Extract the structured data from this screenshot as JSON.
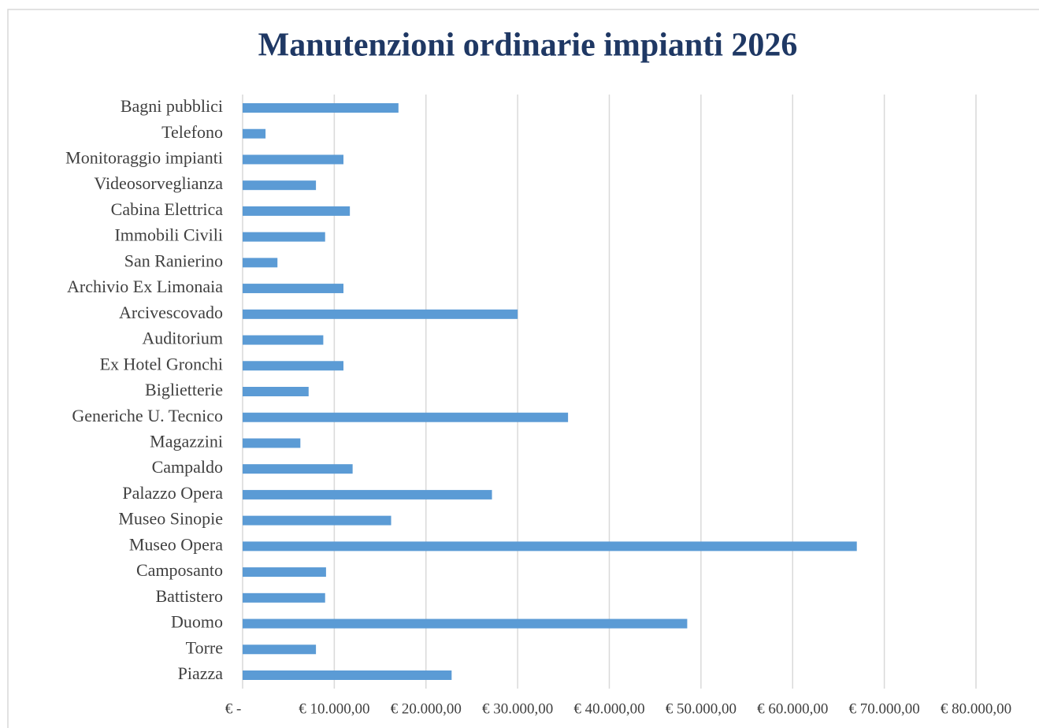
{
  "chart_data": {
    "type": "barh",
    "title": "Manutenzioni ordinarie impianti 2026",
    "categories": [
      "Bagni pubblici",
      "Telefono",
      "Monitoraggio impianti",
      "Videosorveglianza",
      "Cabina Elettrica",
      "Immobili Civili",
      "San Ranierino",
      "Archivio Ex Limonaia",
      "Arcivescovado",
      "Auditorium",
      "Ex Hotel Gronchi",
      "Biglietterie",
      "Generiche U. Tecnico",
      "Magazzini",
      "Campaldo",
      "Palazzo Opera",
      "Museo Sinopie",
      "Museo Opera",
      "Camposanto",
      "Battistero",
      "Duomo",
      "Torre",
      "Piazza"
    ],
    "values": [
      17000,
      2500,
      11000,
      8000,
      11700,
      9000,
      3800,
      11000,
      30000,
      8800,
      11000,
      7200,
      35500,
      6300,
      12000,
      27200,
      16200,
      67000,
      9100,
      9000,
      48500,
      8000,
      22800
    ],
    "color": "#5b9bd5",
    "xlim": [
      0,
      80000
    ],
    "xticks": [
      {
        "value": 0,
        "label": "€ -"
      },
      {
        "value": 10000,
        "label": "€ 10.000,00"
      },
      {
        "value": 20000,
        "label": "€ 20.000,00"
      },
      {
        "value": 30000,
        "label": "€ 30.000,00"
      },
      {
        "value": 40000,
        "label": "€ 40.000,00"
      },
      {
        "value": 50000,
        "label": "€ 50.000,00"
      },
      {
        "value": 60000,
        "label": "€ 60.000,00"
      },
      {
        "value": 70000,
        "label": "€ 70.000,00"
      },
      {
        "value": 80000,
        "label": "€ 80.000,00"
      }
    ],
    "grid": true
  }
}
